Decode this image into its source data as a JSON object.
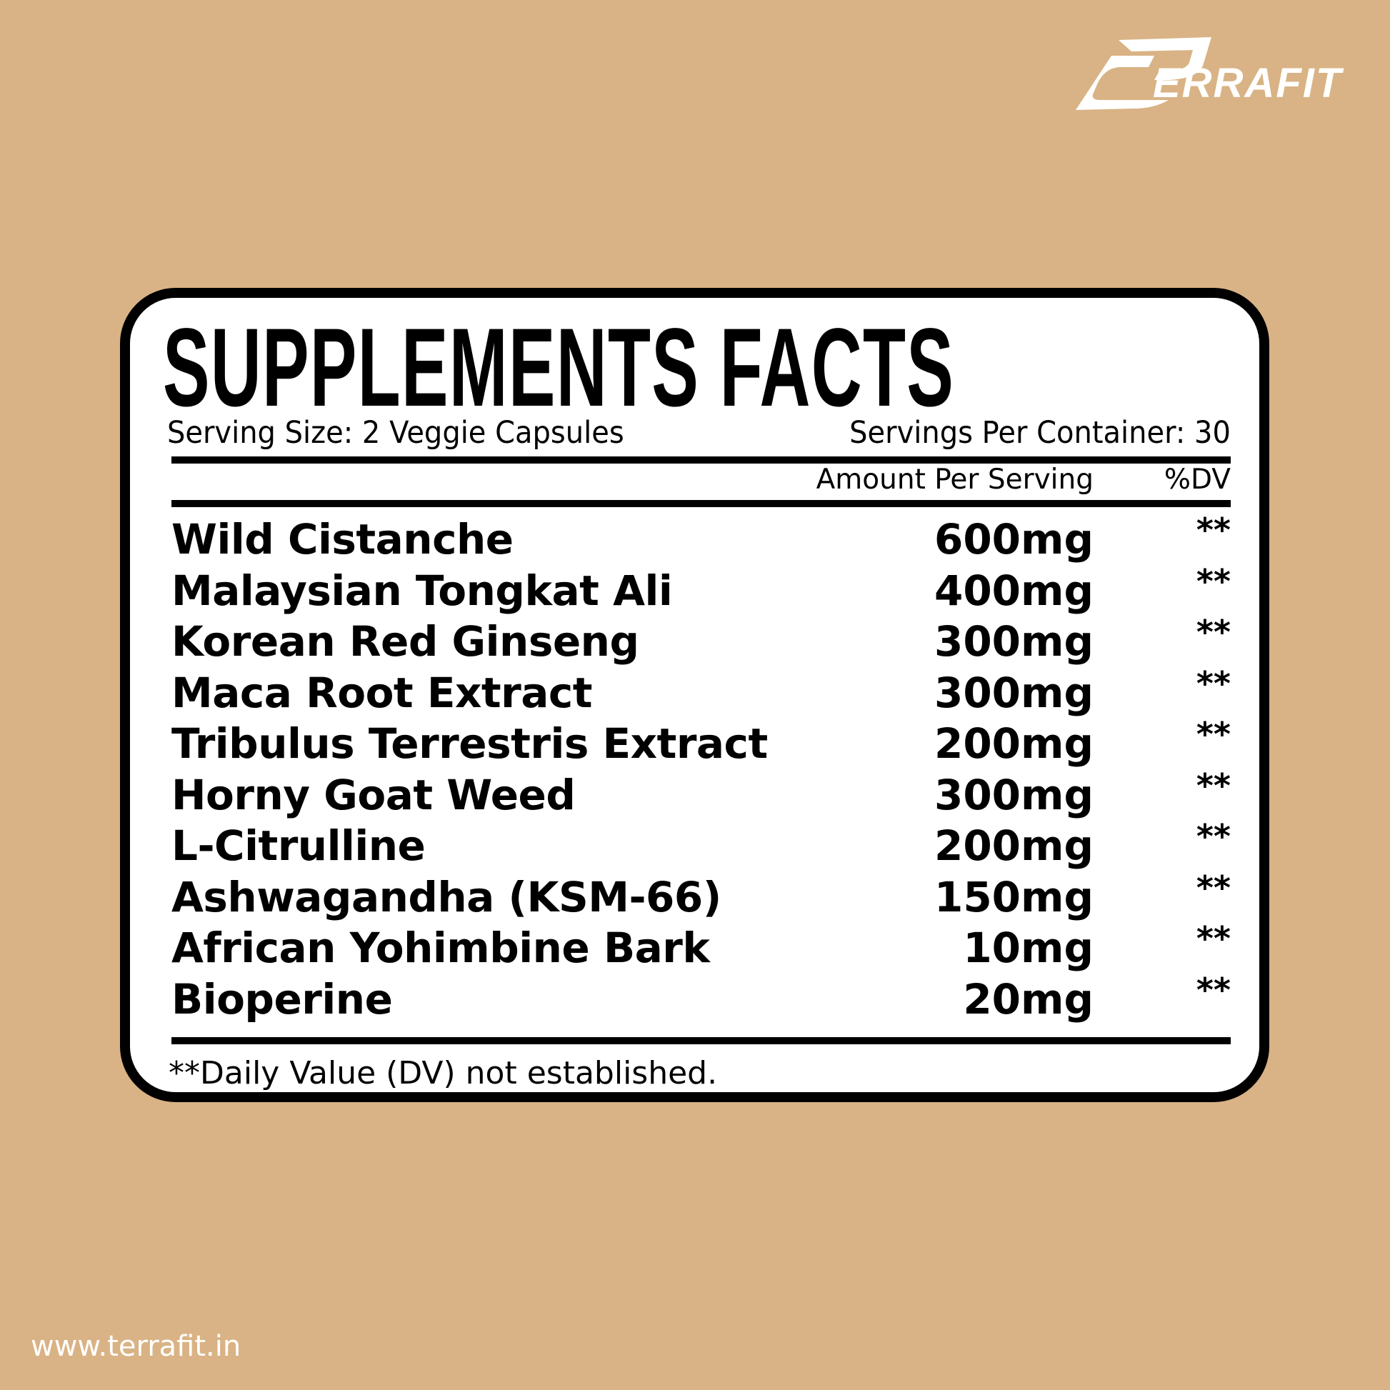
{
  "brand": {
    "logo_text": "TERRAFIT",
    "website": "www.terrafit.in",
    "logo_color": "#ffffff",
    "background_color": "#d9b385"
  },
  "label": {
    "title": "SUPPLEMENTS FACTS",
    "serving_size": "Serving Size: 2 Veggie Capsules",
    "servings_per_container": "Servings Per Container: 30",
    "amount_header": "Amount Per Serving",
    "dv_header": "%DV",
    "ingredients": [
      {
        "name": "Wild Cistanche",
        "amount": "600mg",
        "dv": "**"
      },
      {
        "name": "Malaysian Tongkat Ali",
        "amount": "400mg",
        "dv": "**"
      },
      {
        "name": "Korean Red Ginseng",
        "amount": "300mg",
        "dv": "**"
      },
      {
        "name": "Maca Root Extract",
        "amount": "300mg",
        "dv": "**"
      },
      {
        "name": "Tribulus Terrestris Extract",
        "amount": "200mg",
        "dv": "**"
      },
      {
        "name": "Horny Goat Weed",
        "amount": "300mg",
        "dv": "**"
      },
      {
        "name": "L-Citrulline",
        "amount": "200mg",
        "dv": "**"
      },
      {
        "name": "Ashwagandha (KSM-66)",
        "amount": "150mg",
        "dv": "**"
      },
      {
        "name": "African Yohimbine Bark",
        "amount": "10mg",
        "dv": "**"
      },
      {
        "name": "Bioperine",
        "amount": "20mg",
        "dv": "**"
      }
    ],
    "footnote": "**Daily Value (DV) not established."
  }
}
